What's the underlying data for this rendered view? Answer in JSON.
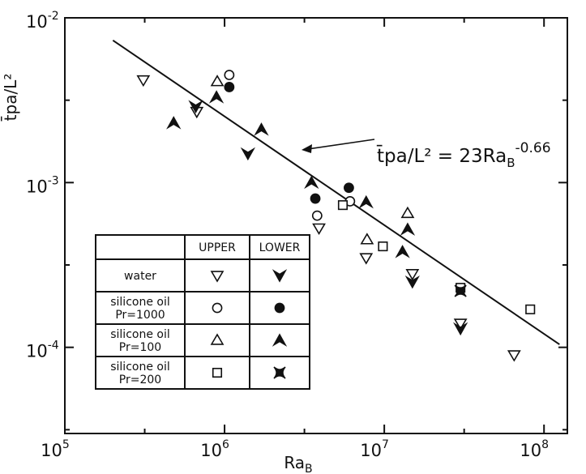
{
  "chart_data": {
    "type": "scatter",
    "title": "",
    "xlabel": "Ra",
    "xlabel_sub": "B",
    "ylabel": "t̄pa/L²",
    "x_scale": "log",
    "y_scale": "log",
    "xlim": [
      100000,
      140000000
    ],
    "ylim": [
      3e-05,
      0.01
    ],
    "x_ticks": [
      {
        "value": 100000,
        "base": "10",
        "exp": "5"
      },
      {
        "value": 1000000,
        "base": "10",
        "exp": "6"
      },
      {
        "value": 10000000,
        "base": "10",
        "exp": "7"
      },
      {
        "value": 100000000,
        "base": "10",
        "exp": "8"
      }
    ],
    "y_ticks": [
      {
        "value": 0.01,
        "base": "10",
        "exp": "-2"
      },
      {
        "value": 0.001,
        "base": "10",
        "exp": "-3"
      },
      {
        "value": 0.0001,
        "base": "10",
        "exp": "-4"
      }
    ],
    "fit_line": {
      "coef": 23,
      "exponent": -0.66,
      "x_range": [
        200000,
        125000000
      ],
      "label_main": "t̄pa/L² = 23Ra",
      "label_sub": "B",
      "label_exp": "-0.66"
    },
    "legend": {
      "columns": [
        "UPPER",
        "LOWER"
      ],
      "rows": [
        {
          "label_lines": [
            "water"
          ],
          "upper": "open-down-triangle",
          "lower": "filled-down-triangle"
        },
        {
          "label_lines": [
            "silicone oil",
            "Pr=1000"
          ],
          "upper": "open-circle",
          "lower": "filled-circle"
        },
        {
          "label_lines": [
            "silicone oil",
            "Pr=100"
          ],
          "upper": "open-up-triangle",
          "lower": "filled-up-triangle"
        },
        {
          "label_lines": [
            "silicone oil",
            "Pr=200"
          ],
          "upper": "open-square",
          "lower": "filled-square"
        }
      ]
    },
    "series": [
      {
        "marker": "open-down-triangle",
        "points": [
          [
            310000,
            0.0042
          ],
          [
            670000,
            0.0027
          ],
          [
            3900000,
            0.00053
          ],
          [
            7700000,
            0.00035
          ],
          [
            15000000,
            0.00028
          ],
          [
            30000000,
            0.00014
          ],
          [
            65000000,
            9e-05
          ]
        ]
      },
      {
        "marker": "filled-down-triangle",
        "points": [
          [
            660000,
            0.0029
          ],
          [
            1400000,
            0.0015
          ],
          [
            15000000,
            0.00025
          ],
          [
            30000000,
            0.00013
          ]
        ]
      },
      {
        "marker": "open-circle",
        "points": [
          [
            1070000,
            0.0045
          ],
          [
            3800000,
            0.00063
          ],
          [
            6100000,
            0.00077
          ]
        ]
      },
      {
        "marker": "filled-circle",
        "points": [
          [
            1070000,
            0.0038
          ],
          [
            3700000,
            0.0008
          ],
          [
            6000000,
            0.00093
          ]
        ]
      },
      {
        "marker": "open-up-triangle",
        "points": [
          [
            900000,
            0.0041
          ],
          [
            7800000,
            0.00045
          ],
          [
            14000000,
            0.00065
          ]
        ]
      },
      {
        "marker": "filled-up-triangle",
        "points": [
          [
            480000,
            0.0023
          ],
          [
            890000,
            0.0033
          ],
          [
            1700000,
            0.0021
          ],
          [
            3500000,
            0.001
          ],
          [
            7700000,
            0.00076
          ],
          [
            13000000,
            0.00038
          ],
          [
            14000000,
            0.00052
          ]
        ]
      },
      {
        "marker": "open-square",
        "points": [
          [
            5500000,
            0.00073
          ],
          [
            9800000,
            0.00041
          ],
          [
            30000000,
            0.00023
          ],
          [
            82000000,
            0.00017
          ]
        ]
      },
      {
        "marker": "filled-square",
        "points": [
          [
            30000000,
            0.00022
          ]
        ]
      }
    ]
  }
}
